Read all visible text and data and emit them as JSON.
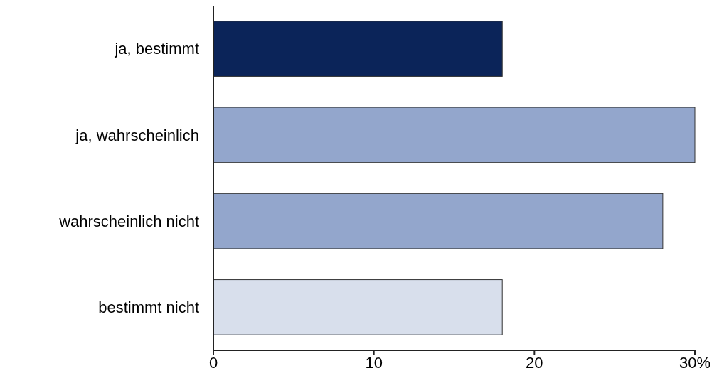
{
  "chart_data": {
    "type": "bar",
    "orientation": "horizontal",
    "categories": [
      "ja, bestimmt",
      "ja, wahrscheinlich",
      "wahrscheinlich nicht",
      "bestimmt nicht"
    ],
    "values": [
      18,
      30,
      28,
      18
    ],
    "colors": [
      "#0b2459",
      "#93a6cc",
      "#93a6cc",
      "#d8dfec"
    ],
    "xlim": [
      0,
      30
    ],
    "xticks": [
      0,
      10,
      20,
      {
        "value": 30,
        "label": "30%"
      }
    ],
    "grid": false
  }
}
